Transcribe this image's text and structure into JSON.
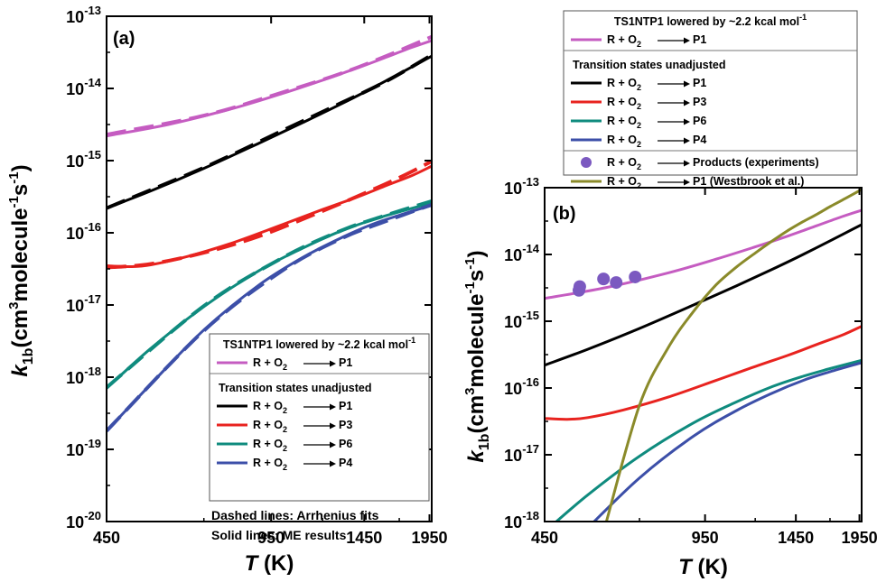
{
  "chart_data": [
    {
      "panel_label": "(a)",
      "type": "line",
      "ylabel": {
        "main": "k",
        "sub": "1b",
        "paren": "(cm",
        "sup1": "3",
        "mid": "molecule",
        "sup2": "-1",
        "s": "s",
        "sup3": "-1",
        "close": ")"
      },
      "xlabel": {
        "main": "T",
        "unit": " (K)"
      },
      "xlim": [
        450,
        1970
      ],
      "xticks": [
        "450",
        "950",
        "1450",
        "1950"
      ],
      "xtick_values": [
        450,
        950,
        1450,
        1950
      ],
      "yscale": "log",
      "ylim": [
        1e-20,
        1e-13
      ],
      "yticks": [
        {
          "base": "10",
          "exp": "-13",
          "value": 1e-13
        },
        {
          "base": "10",
          "exp": "-14",
          "value": 1e-14
        },
        {
          "base": "10",
          "exp": "-15",
          "value": 1e-15
        },
        {
          "base": "10",
          "exp": "-16",
          "value": 1e-16
        },
        {
          "base": "10",
          "exp": "-17",
          "value": 1e-17
        },
        {
          "base": "10",
          "exp": "-18",
          "value": 1e-18
        },
        {
          "base": "10",
          "exp": "-19",
          "value": 1e-19
        },
        {
          "base": "10",
          "exp": "-20",
          "value": 1e-20
        }
      ],
      "series": [
        {
          "name": "P1 lowered",
          "color": "#c55cc1",
          "style": "solid",
          "x": [
            450,
            600,
            800,
            1000,
            1200,
            1400,
            1600,
            1800,
            1970
          ],
          "y": [
            2.2e-15,
            3.2e-15,
            5.3e-15,
            8.5e-15,
            1.3e-14,
            1.9e-14,
            2.7e-14,
            3.7e-14,
            4.6e-14
          ]
        },
        {
          "name": "P1 lowered fit",
          "color": "#c55cc1",
          "style": "dashed",
          "x": [
            450,
            700,
            1000,
            1300,
            1600,
            1970
          ],
          "y": [
            2.3e-15,
            4.2e-15,
            8.8e-15,
            1.6e-14,
            2.8e-14,
            5.2e-14
          ]
        },
        {
          "name": "P1",
          "color": "#000000",
          "style": "solid",
          "x": [
            450,
            550,
            700,
            900,
            1100,
            1300,
            1500,
            1700,
            1970
          ],
          "y": [
            2.2e-16,
            3.8e-16,
            7.8e-16,
            1.75e-15,
            3.4e-15,
            6e-15,
            1e-14,
            1.6e-14,
            2.8e-14
          ]
        },
        {
          "name": "P1 fit",
          "color": "#000000",
          "style": "dashed",
          "x": [
            450,
            700,
            1000,
            1300,
            1600,
            1970
          ],
          "y": [
            2.2e-16,
            8e-16,
            2.6e-15,
            6.2e-15,
            1.25e-14,
            2.9e-14
          ]
        },
        {
          "name": "P3",
          "color": "#e8231f",
          "style": "solid",
          "x": [
            450,
            500,
            550,
            650,
            800,
            1000,
            1200,
            1400,
            1600,
            1800,
            1970
          ],
          "y": [
            3.5e-17,
            3.4e-17,
            3.6e-17,
            4.7e-17,
            7.3e-17,
            1.3e-16,
            2.1e-16,
            3.1e-16,
            4.5e-16,
            6.2e-16,
            8.4e-16
          ]
        },
        {
          "name": "P3 fit",
          "color": "#e8231f",
          "style": "dashed",
          "x": [
            450,
            550,
            700,
            900,
            1200,
            1500,
            1750,
            1970
          ],
          "y": [
            3.3e-17,
            3.7e-17,
            5.3e-17,
            9e-17,
            2e-16,
            3.9e-16,
            6.4e-16,
            9.8e-16
          ]
        },
        {
          "name": "P6",
          "color": "#0f8b7e",
          "style": "solid",
          "x": [
            450,
            550,
            700,
            900,
            1100,
            1300,
            1500,
            1700,
            1970
          ],
          "y": [
            7e-19,
            2.5e-18,
            9.5e-18,
            3e-17,
            6.2e-17,
            1.05e-16,
            1.5e-16,
            1.95e-16,
            2.6e-16
          ]
        },
        {
          "name": "P6 fit",
          "color": "#0f8b7e",
          "style": "dashed",
          "x": [
            450,
            700,
            1000,
            1300,
            1600,
            1970
          ],
          "y": [
            7.2e-19,
            9.7e-18,
            4.5e-17,
            1.06e-16,
            1.75e-16,
            2.75e-16
          ]
        },
        {
          "name": "P4",
          "color": "#3c4fa8",
          "style": "solid",
          "x": [
            450,
            550,
            700,
            900,
            1100,
            1300,
            1500,
            1700,
            1970
          ],
          "y": [
            1.8e-19,
            8e-19,
            4.5e-18,
            1.9e-17,
            4.6e-17,
            8.4e-17,
            1.3e-16,
            1.75e-16,
            2.4e-16
          ]
        },
        {
          "name": "P4 fit",
          "color": "#3c4fa8",
          "style": "dashed",
          "x": [
            450,
            700,
            1000,
            1300,
            1600,
            1970
          ],
          "y": [
            1.8e-19,
            4.4e-18,
            3e-17,
            8.2e-17,
            1.45e-16,
            2.45e-16
          ]
        }
      ],
      "legend": {
        "placement": "lower-right",
        "header1": {
          "text": "TS1NTP1 lowered by ~2.2 kcal mol",
          "sup": "-1"
        },
        "header2": "Transition states unadjusted",
        "entries": [
          {
            "pre": "R + O",
            "sub": "2",
            "prod": "P1",
            "color": "#c55cc1",
            "group": 1
          },
          {
            "pre": "R + O",
            "sub": "2",
            "prod": "P1",
            "color": "#000000",
            "group": 2
          },
          {
            "pre": "R + O",
            "sub": "2",
            "prod": "P3",
            "color": "#e8231f",
            "group": 2
          },
          {
            "pre": "R + O",
            "sub": "2",
            "prod": "P6",
            "color": "#0f8b7e",
            "group": 2
          },
          {
            "pre": "R + O",
            "sub": "2",
            "prod": "P4",
            "color": "#3c4fa8",
            "group": 2
          }
        ]
      },
      "annotations": [
        "Dashed lines: Arrhenius fits",
        "Solid lines: ME results"
      ]
    },
    {
      "panel_label": "(b)",
      "type": "line",
      "ylabel": {
        "main": "k",
        "sub": "1b",
        "paren": "(cm",
        "sup1": "3",
        "mid": "molecule",
        "sup2": "-1",
        "s": "s",
        "sup3": "-1",
        "close": ")"
      },
      "xlabel": {
        "main": "T",
        "unit": " (K)"
      },
      "xlim": [
        450,
        1970
      ],
      "xticks": [
        "450",
        "950",
        "1450",
        "1950"
      ],
      "xtick_values": [
        450,
        950,
        1450,
        1950
      ],
      "yscale": "log",
      "ylim": [
        1e-18,
        1e-13
      ],
      "yticks": [
        {
          "base": "10",
          "exp": "-13",
          "value": 1e-13
        },
        {
          "base": "10",
          "exp": "-14",
          "value": 1e-14
        },
        {
          "base": "10",
          "exp": "-15",
          "value": 1e-15
        },
        {
          "base": "10",
          "exp": "-16",
          "value": 1e-16
        },
        {
          "base": "10",
          "exp": "-17",
          "value": 1e-17
        },
        {
          "base": "10",
          "exp": "-18",
          "value": 1e-18
        }
      ],
      "series": [
        {
          "name": "P1 lowered",
          "color": "#c55cc1",
          "style": "solid",
          "x": [
            450,
            600,
            800,
            1000,
            1200,
            1400,
            1600,
            1800,
            1970
          ],
          "y": [
            2.2e-15,
            3.2e-15,
            5.3e-15,
            8.5e-15,
            1.3e-14,
            1.9e-14,
            2.7e-14,
            3.7e-14,
            4.6e-14
          ]
        },
        {
          "name": "P1",
          "color": "#000000",
          "style": "solid",
          "x": [
            450,
            550,
            700,
            900,
            1100,
            1300,
            1500,
            1700,
            1970
          ],
          "y": [
            2.2e-16,
            3.8e-16,
            7.8e-16,
            1.75e-15,
            3.4e-15,
            6e-15,
            1e-14,
            1.6e-14,
            2.8e-14
          ]
        },
        {
          "name": "P3",
          "color": "#e8231f",
          "style": "solid",
          "x": [
            450,
            500,
            550,
            650,
            800,
            1000,
            1200,
            1400,
            1600,
            1800,
            1970
          ],
          "y": [
            3.5e-17,
            3.4e-17,
            3.6e-17,
            4.7e-17,
            7.3e-17,
            1.3e-16,
            2.1e-16,
            3.1e-16,
            4.5e-16,
            6.2e-16,
            8.4e-16
          ]
        },
        {
          "name": "P6",
          "color": "#0f8b7e",
          "style": "solid",
          "x": [
            450,
            550,
            700,
            900,
            1100,
            1300,
            1500,
            1700,
            1970
          ],
          "y": [
            7e-19,
            2.5e-18,
            9.5e-18,
            3e-17,
            6.2e-17,
            1.05e-16,
            1.5e-16,
            1.95e-16,
            2.6e-16
          ]
        },
        {
          "name": "P4",
          "color": "#3c4fa8",
          "style": "solid",
          "x": [
            450,
            550,
            700,
            900,
            1100,
            1300,
            1500,
            1700,
            1970
          ],
          "y": [
            1.8e-19,
            8e-19,
            4.5e-18,
            1.9e-17,
            4.6e-17,
            8.4e-17,
            1.3e-16,
            1.75e-16,
            2.4e-16
          ]
        },
        {
          "name": "Westbrook",
          "color": "#8a8a2a",
          "style": "solid",
          "x": [
            600,
            700,
            800,
            900,
            1000,
            1100,
            1200,
            1300,
            1400,
            1500,
            1600,
            1700,
            1800,
            1970
          ],
          "y": [
            1e-18,
            5.5e-17,
            4e-16,
            1.4e-15,
            3.5e-15,
            6.5e-15,
            1.05e-14,
            1.6e-14,
            2.3e-14,
            3.1e-14,
            4e-14,
            5.2e-14,
            6.5e-14,
            9.4e-14
          ]
        }
      ],
      "experiments": {
        "color": "#7b59c0",
        "x": [
          528,
          530,
          592,
          628,
          686
        ],
        "y": [
          2.9e-15,
          3.3e-15,
          4.3e-15,
          3.8e-15,
          4.6e-15
        ]
      },
      "legend": {
        "placement": "top",
        "header1": {
          "text": "TS1NTP1 lowered by ~2.2 kcal mol",
          "sup": "-1"
        },
        "header2": "Transition states unadjusted",
        "entries": [
          {
            "pre": "R + O",
            "sub": "2",
            "prod": "P1",
            "color": "#c55cc1",
            "group": 1,
            "kind": "line"
          },
          {
            "pre": "R + O",
            "sub": "2",
            "prod": "P1",
            "color": "#000000",
            "group": 2,
            "kind": "line"
          },
          {
            "pre": "R + O",
            "sub": "2",
            "prod": "P3",
            "color": "#e8231f",
            "group": 2,
            "kind": "line"
          },
          {
            "pre": "R + O",
            "sub": "2",
            "prod": "P6",
            "color": "#0f8b7e",
            "group": 2,
            "kind": "line"
          },
          {
            "pre": "R + O",
            "sub": "2",
            "prod": "P4",
            "color": "#3c4fa8",
            "group": 2,
            "kind": "line"
          },
          {
            "pre": "R + O",
            "sub": "2",
            "prod": "Products (experiments)",
            "color": "#7b59c0",
            "group": 3,
            "kind": "marker"
          },
          {
            "pre": "R + O",
            "sub": "2",
            "prod": "P1 (Westbrook et al.)",
            "color": "#8a8a2a",
            "group": 3,
            "kind": "line"
          }
        ]
      }
    }
  ]
}
